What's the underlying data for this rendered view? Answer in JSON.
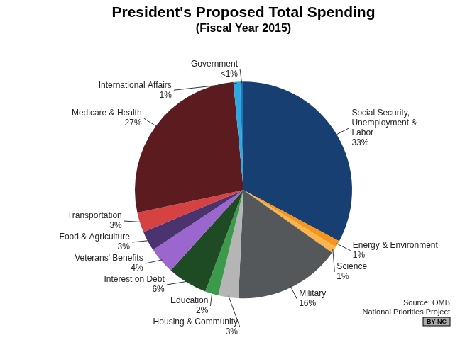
{
  "chart_data": {
    "type": "pie",
    "title": "President's Proposed Total Spending",
    "subtitle": "(Fiscal Year 2015)",
    "categories": [
      "Social Security, Unemployment & Labor",
      "Energy & Environment",
      "Science",
      "Military",
      "Housing & Community",
      "Education",
      "Interest on Debt",
      "Veterans' Benefits",
      "Food & Agriculture",
      "Transportation",
      "Medicare & Health",
      "International Affairs",
      "Government"
    ],
    "values": [
      33,
      1,
      1,
      16,
      3,
      2,
      6,
      4,
      3,
      3,
      27,
      1,
      0.5
    ],
    "value_labels": [
      "33%",
      "1%",
      "1%",
      "16%",
      "3%",
      "2%",
      "6%",
      "4%",
      "3%",
      "3%",
      "27%",
      "1%",
      "<1%"
    ],
    "colors": [
      "#173f72",
      "#f7941d",
      "#f9b54c",
      "#55585a",
      "#b5b5b5",
      "#3c9a4c",
      "#1f4b24",
      "#9b67cf",
      "#4a336f",
      "#d64242",
      "#5c1c1f",
      "#2ea8e0",
      "#1a76b8"
    ],
    "data_labels": true,
    "source": [
      "Source: OMB",
      "National Priorities Project"
    ],
    "license": "BY-NC"
  }
}
